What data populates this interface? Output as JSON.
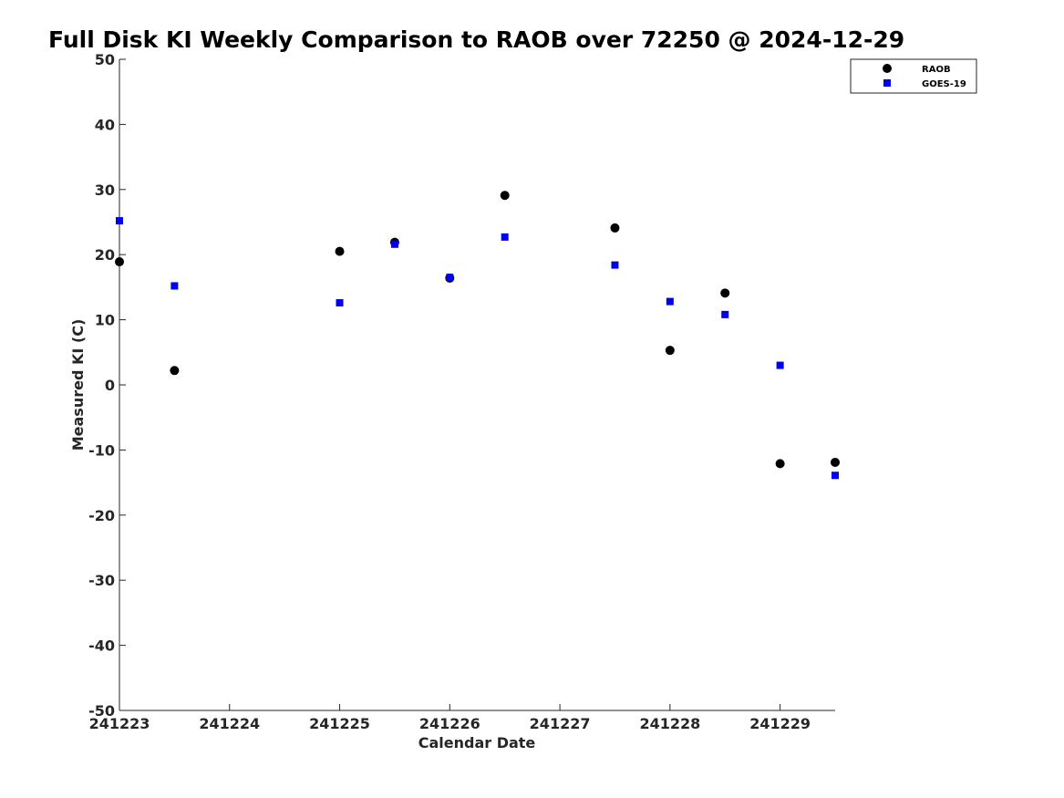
{
  "chart_data": {
    "type": "scatter",
    "title": "Full Disk KI Weekly Comparison to RAOB over 72250 @ 2024-12-29",
    "xlabel": "Calendar Date",
    "ylabel": "Measured KI (C)",
    "x_ticks": [
      {
        "value": "2024-12-23T00:00",
        "label": "241223"
      },
      {
        "value": "2024-12-24T00:00",
        "label": "241224"
      },
      {
        "value": "2024-12-25T00:00",
        "label": "241225"
      },
      {
        "value": "2024-12-26T00:00",
        "label": "241226"
      },
      {
        "value": "2024-12-27T00:00",
        "label": "241227"
      },
      {
        "value": "2024-12-28T00:00",
        "label": "241228"
      },
      {
        "value": "2024-12-29T00:00",
        "label": "241229"
      }
    ],
    "xlim": [
      "2024-12-23T00:00",
      "2024-12-29T12:00"
    ],
    "ylim": [
      -50,
      50
    ],
    "y_ticks": [
      -50,
      -40,
      -30,
      -20,
      -10,
      0,
      10,
      20,
      30,
      40,
      50
    ],
    "grid": false,
    "legend_position": "top-right",
    "series": [
      {
        "name": "RAOB",
        "marker": "circle",
        "color": "#000000",
        "points": [
          {
            "x": "2024-12-23T00:00",
            "y": 18.9
          },
          {
            "x": "2024-12-23T12:00",
            "y": 2.2
          },
          {
            "x": "2024-12-25T00:00",
            "y": 20.5
          },
          {
            "x": "2024-12-25T12:00",
            "y": 21.9
          },
          {
            "x": "2024-12-26T00:00",
            "y": 16.4
          },
          {
            "x": "2024-12-26T12:00",
            "y": 29.1
          },
          {
            "x": "2024-12-27T12:00",
            "y": 24.1
          },
          {
            "x": "2024-12-28T00:00",
            "y": 5.3
          },
          {
            "x": "2024-12-28T12:00",
            "y": 14.1
          },
          {
            "x": "2024-12-29T00:00",
            "y": -12.1
          },
          {
            "x": "2024-12-29T12:00",
            "y": -11.9
          }
        ]
      },
      {
        "name": "GOES-19",
        "marker": "square",
        "color": "#0000ee",
        "points": [
          {
            "x": "2024-12-23T00:00",
            "y": 25.2
          },
          {
            "x": "2024-12-23T12:00",
            "y": 15.2
          },
          {
            "x": "2024-12-25T00:00",
            "y": 12.6
          },
          {
            "x": "2024-12-25T12:00",
            "y": 21.6
          },
          {
            "x": "2024-12-26T00:00",
            "y": 16.5
          },
          {
            "x": "2024-12-26T12:00",
            "y": 22.7
          },
          {
            "x": "2024-12-27T12:00",
            "y": 18.4
          },
          {
            "x": "2024-12-28T00:00",
            "y": 12.8
          },
          {
            "x": "2024-12-28T12:00",
            "y": 10.8
          },
          {
            "x": "2024-12-29T00:00",
            "y": 3.0
          },
          {
            "x": "2024-12-29T12:00",
            "y": -13.9
          }
        ]
      }
    ]
  }
}
